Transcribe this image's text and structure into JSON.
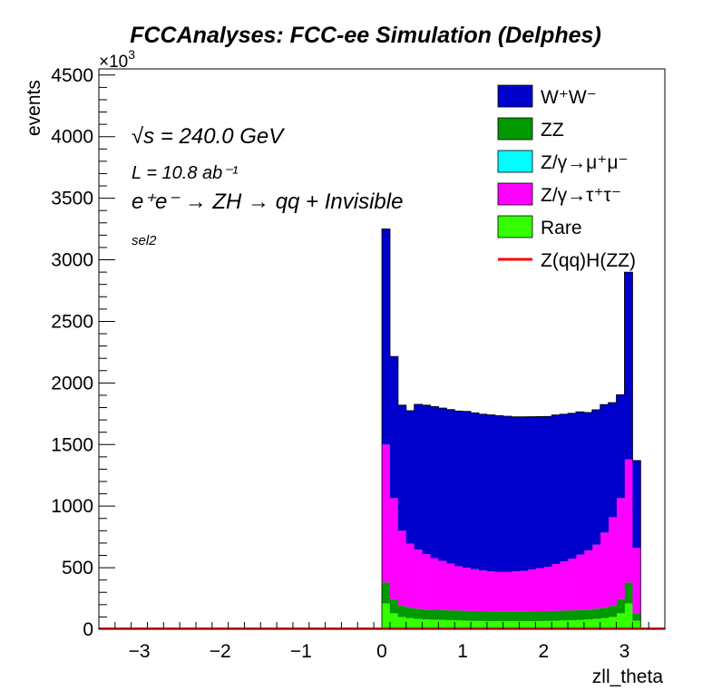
{
  "chart_data": {
    "type": "bar",
    "stacked": true,
    "title": "FCCAnalyses: FCC-ee Simulation (Delphes)",
    "xlabel": "zll_theta",
    "ylabel": "events",
    "y_multiplier": "×10",
    "y_multiplier_exp": "3",
    "xlim": [
      -3.5,
      3.5
    ],
    "ylim": [
      0,
      4550
    ],
    "xticks": [
      -3,
      -2,
      -1,
      0,
      1,
      2,
      3
    ],
    "yticks": [
      0,
      500,
      1000,
      1500,
      2000,
      2500,
      3000,
      3500,
      4000,
      4500
    ],
    "grid": false,
    "legend_position": "top-right",
    "bin_edges": [
      0.0,
      0.1,
      0.2,
      0.3,
      0.4,
      0.5,
      0.6,
      0.7,
      0.8,
      0.9,
      1.0,
      1.1,
      1.2,
      1.3,
      1.4,
      1.5,
      1.6,
      1.7,
      1.8,
      1.9,
      2.0,
      2.1,
      2.2,
      2.3,
      2.4,
      2.5,
      2.6,
      2.7,
      2.8,
      2.9,
      3.0,
      3.1,
      3.2
    ],
    "series": [
      {
        "name": "Rare",
        "color": "#33ff00",
        "values": [
          210,
          130,
          100,
          90,
          85,
          80,
          78,
          76,
          74,
          72,
          70,
          68,
          67,
          66,
          65,
          65,
          65,
          65,
          66,
          67,
          68,
          70,
          72,
          74,
          76,
          80,
          85,
          90,
          100,
          130,
          210,
          70
        ]
      },
      {
        "name": "ZZ",
        "color": "#009900",
        "values": [
          170,
          115,
          90,
          85,
          82,
          80,
          80,
          80,
          80,
          80,
          80,
          80,
          80,
          80,
          80,
          80,
          80,
          80,
          80,
          80,
          80,
          80,
          80,
          80,
          80,
          80,
          82,
          85,
          90,
          115,
          170,
          60
        ]
      },
      {
        "name": "Z/γ→μ⁺μ⁻",
        "color": "#00ffff",
        "values": [
          0,
          0,
          0,
          0,
          0,
          0,
          0,
          0,
          0,
          0,
          0,
          0,
          0,
          0,
          0,
          0,
          0,
          0,
          0,
          0,
          0,
          0,
          0,
          0,
          0,
          0,
          0,
          0,
          0,
          0,
          0,
          0
        ]
      },
      {
        "name": "Z/γ→τ⁺τ⁻",
        "color": "#ff00ff",
        "values": [
          1120,
          820,
          610,
          520,
          480,
          450,
          420,
          400,
          380,
          360,
          350,
          340,
          330,
          325,
          320,
          320,
          325,
          330,
          340,
          350,
          360,
          380,
          400,
          420,
          450,
          480,
          520,
          610,
          720,
          820,
          1000,
          530
        ]
      },
      {
        "name": "W⁺W⁻",
        "color": "#0000cc",
        "values": [
          1750,
          1150,
          1020,
          1080,
          1180,
          1210,
          1230,
          1240,
          1250,
          1260,
          1270,
          1270,
          1270,
          1270,
          1270,
          1265,
          1255,
          1250,
          1240,
          1230,
          1220,
          1210,
          1195,
          1180,
          1160,
          1120,
          1095,
          1040,
          930,
          840,
          1520,
          710
        ]
      }
    ],
    "signal": {
      "name": "Z(qq)H(ZZ)",
      "color": "#ff0000",
      "value": 0
    },
    "legend_order": [
      "W⁺W⁻",
      "ZZ",
      "Z/γ→μ⁺μ⁻",
      "Z/γ→τ⁺τ⁻",
      "Rare",
      "Z(qq)H(ZZ)"
    ],
    "annotations": {
      "sqrt_s": "√s = 240.0 GeV",
      "lumi": "L = 10.8 ab⁻¹",
      "process": "e⁺e⁻ → ZH → qq + Invisible",
      "selection": "sel2"
    }
  }
}
